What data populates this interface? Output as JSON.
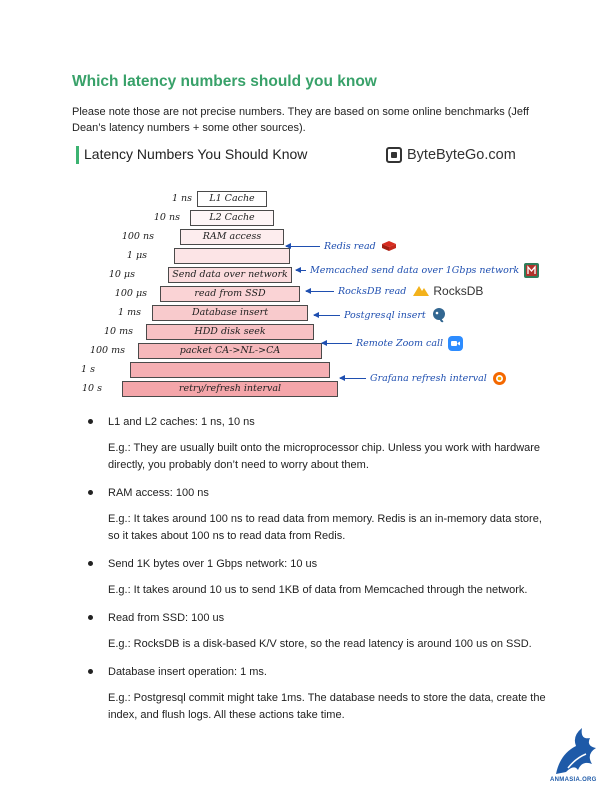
{
  "heading": "Which latency numbers should you know",
  "intro": "Please note those are not precise numbers. They are based on some online benchmarks (Jeff Dean’s latency numbers + some other sources).",
  "figure": {
    "title": "Latency Numbers You Should Know",
    "brand": "ByteByteGo.com",
    "rows": [
      {
        "latency": "1 ns",
        "bar": "L1 Cache"
      },
      {
        "latency": "10 ns",
        "bar": "L2 Cache"
      },
      {
        "latency": "100 ns",
        "bar": "RAM access"
      },
      {
        "latency": "1 μs",
        "bar": ""
      },
      {
        "latency": "10 μs",
        "bar": "Send data over network"
      },
      {
        "latency": "100 μs",
        "bar": "read from SSD"
      },
      {
        "latency": "1 ms",
        "bar": "Database insert"
      },
      {
        "latency": "10 ms",
        "bar": "HDD disk seek"
      },
      {
        "latency": "100 ms",
        "bar": "packet CA->NL->CA"
      },
      {
        "latency": "1 s",
        "bar": ""
      },
      {
        "latency": "10 s",
        "bar": "retry/refresh interval"
      }
    ],
    "annotations": [
      {
        "text": "Redis read"
      },
      {
        "text": "Memcached send data over 1Gbps network"
      },
      {
        "text": "RocksDB read",
        "badge": "RocksDB"
      },
      {
        "text": "Postgresql insert"
      },
      {
        "text": "Remote Zoom call"
      },
      {
        "text": "Grafana refresh interval"
      }
    ],
    "colors": {
      "bar_top": "#ffffff",
      "bar_bottom": "#f4a6aa",
      "annotation": "#1f4fb0"
    }
  },
  "bullets": [
    {
      "head": "L1 and L2 caches: 1 ns, 10 ns",
      "detail": "E.g.: They are usually built onto the microprocessor chip. Unless you work with hardware directly, you probably don’t need to worry about them."
    },
    {
      "head": "RAM access: 100 ns",
      "detail": "E.g.: It takes around 100 ns to read data from memory. Redis is an in-memory data store, so it takes about 100 ns to read data from Redis."
    },
    {
      "head": "Send 1K bytes over 1 Gbps network: 10 us",
      "detail": "E.g.: It takes around 10 us to send 1KB of data from Memcached through the network."
    },
    {
      "head": "Read from SSD: 100 us",
      "detail": "E.g.: RocksDB is a disk-based K/V store, so the read latency is around 100 us on SSD."
    },
    {
      "head": "Database insert operation: 1 ms.",
      "detail": "E.g.: Postgresql commit might take 1ms. The database needs to store the data, create the index, and flush logs. All these actions take time."
    }
  ],
  "corner_mark": "ANMASIA.ORG"
}
